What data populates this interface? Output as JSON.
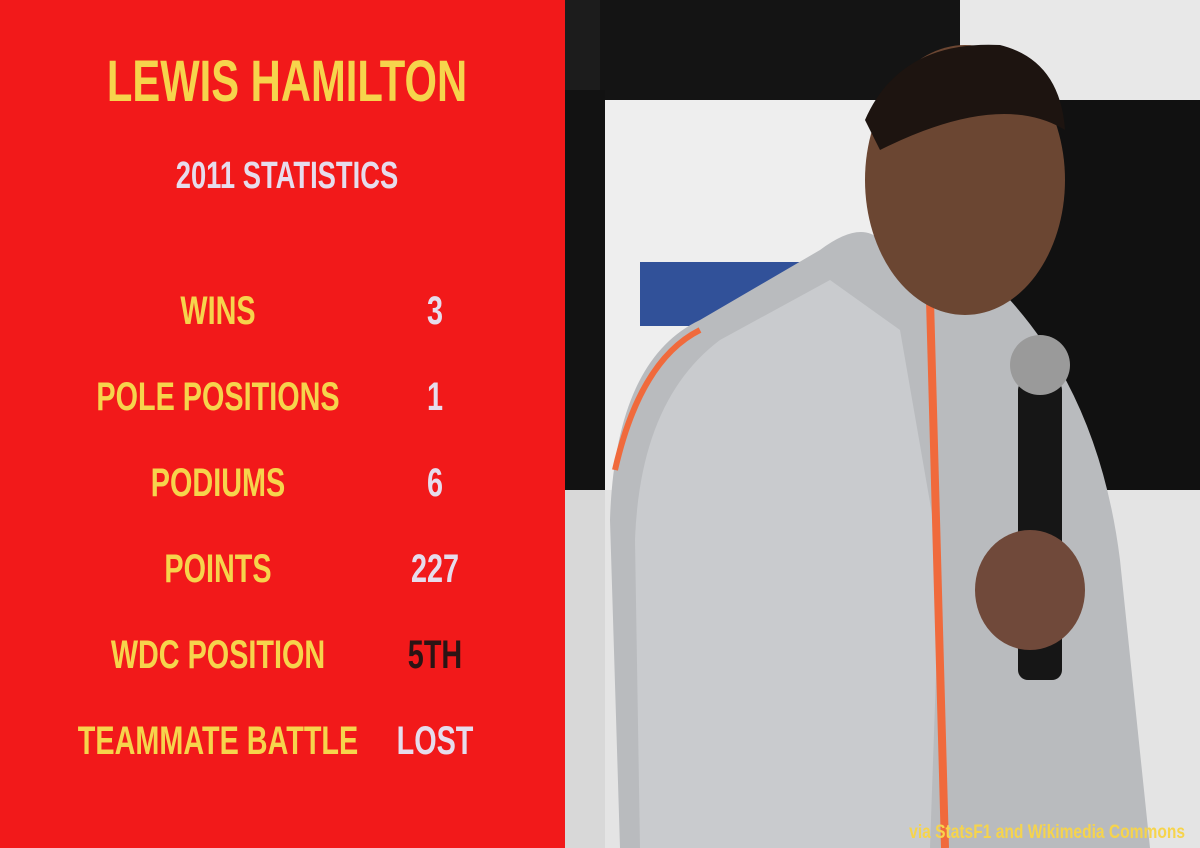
{
  "header": {
    "title": "LEWIS HAMILTON",
    "subtitle": "2011 STATISTICS"
  },
  "stats": [
    {
      "label": "WINS",
      "value": 3,
      "color": "#e6dcec"
    },
    {
      "label": "POLE POSITIONS",
      "value": 1,
      "color": "#e6dcec"
    },
    {
      "label": "PODIUMS",
      "value": 6,
      "color": "#e6dcec"
    },
    {
      "label": "POINTS",
      "value": 227,
      "color": "#e6dcec"
    },
    {
      "label": "WDC POSITION",
      "value": "5TH",
      "color": "#2a1414"
    },
    {
      "label": "TEAMMATE BATTLE",
      "value": "LOST",
      "color": "#e6dcec"
    }
  ],
  "credit": "via StatsF1 and Wikimedia Commons"
}
